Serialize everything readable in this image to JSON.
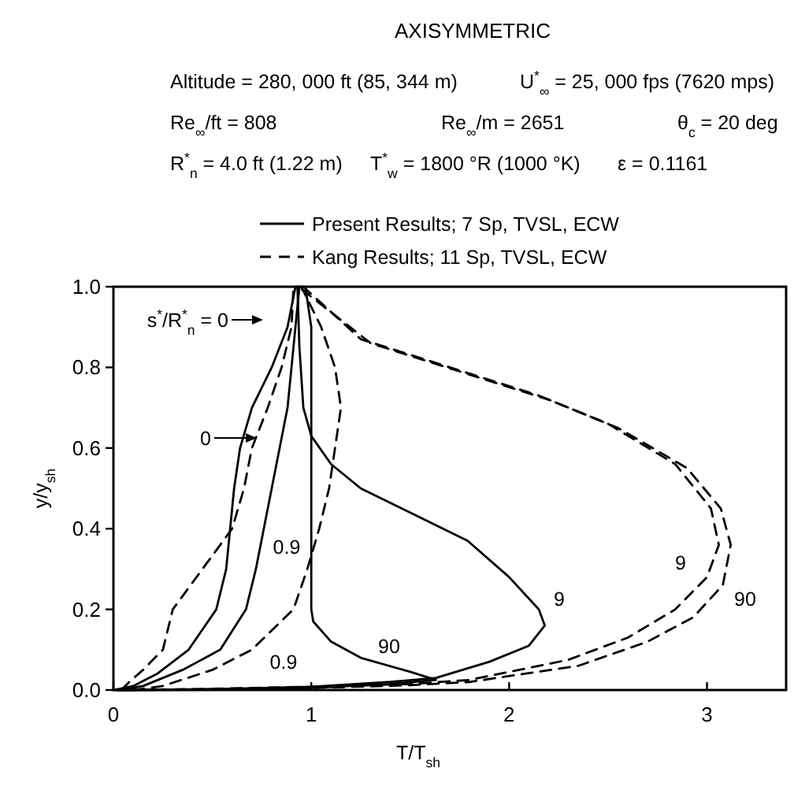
{
  "chart_data": {
    "type": "line",
    "title": "AXISYMMETRIC",
    "xlabel": "T/T$_{sh}$",
    "ylabel": "y/y$_{sh}$",
    "xlim": [
      0,
      3.4
    ],
    "xticks": [
      0,
      1,
      2,
      3
    ],
    "ylim": [
      0,
      1
    ],
    "yticks": [
      {
        "value": 0,
        "label": "0.0"
      },
      {
        "value": 0.2,
        "label": "0.2"
      },
      {
        "value": 0.4,
        "label": "0.4"
      },
      {
        "value": 0.6,
        "label": "0.6"
      },
      {
        "value": 0.8,
        "label": "0.8"
      },
      {
        "value": 1,
        "label": "1.0"
      }
    ],
    "legend": "top",
    "grid": false,
    "marker": "none",
    "series": [
      {
        "name": "Present Results; 7 Sp, TVSL, ECW",
        "color": "#000000",
        "line_style": "solid",
        "x": [
          0,
          0.1,
          0.22,
          0.38,
          0.52,
          0.57,
          0.59,
          0.61,
          0.64,
          0.7,
          0.8,
          0.88,
          0.92
        ],
        "values": [
          0,
          0.01,
          0.04,
          0.1,
          0.2,
          0.3,
          0.4,
          0.5,
          0.6,
          0.7,
          0.8,
          0.9,
          1.0
        ]
      },
      {
        "color": "#000000",
        "line_style": "solid",
        "x": [
          0.03,
          0.15,
          0.35,
          0.54,
          0.67,
          0.72,
          0.76,
          0.8,
          0.84,
          0.88,
          0.9,
          0.92,
          0.94
        ],
        "values": [
          0,
          0.01,
          0.05,
          0.1,
          0.2,
          0.3,
          0.4,
          0.5,
          0.6,
          0.7,
          0.8,
          0.9,
          1.0
        ]
      },
      {
        "color": "#000000",
        "line_style": "solid",
        "x": [
          0.01,
          0.5,
          1.0,
          1.4,
          1.63,
          1.9,
          2.1,
          2.18,
          2.15,
          2.0,
          1.79,
          1.5,
          1.25,
          1.1,
          1.0,
          0.96,
          0.94,
          0.93
        ],
        "values": [
          0,
          0.002,
          0.008,
          0.02,
          0.03,
          0.07,
          0.11,
          0.16,
          0.2,
          0.28,
          0.37,
          0.44,
          0.5,
          0.56,
          0.63,
          0.7,
          0.85,
          1.0
        ]
      },
      {
        "color": "#000000",
        "line_style": "solid",
        "x": [
          0.05,
          0.5,
          1.0,
          1.4,
          1.63,
          1.5,
          1.25,
          1.1,
          1.01,
          1.0,
          1.0,
          1.0,
          0.97
        ],
        "values": [
          0,
          0.001,
          0.005,
          0.015,
          0.025,
          0.045,
          0.08,
          0.12,
          0.17,
          0.2,
          0.5,
          0.9,
          1.0
        ]
      },
      {
        "name": "Kang Results; 11 Sp, TVSL, ECW",
        "color": "#000000",
        "line_style": "dashed",
        "x": [
          0.04,
          0.08,
          0.15,
          0.25,
          0.3,
          0.45,
          0.6,
          0.66,
          0.7,
          0.78,
          0.85,
          0.9,
          0.91
        ],
        "values": [
          0,
          0.02,
          0.05,
          0.1,
          0.2,
          0.3,
          0.4,
          0.5,
          0.6,
          0.7,
          0.8,
          0.9,
          1.0
        ]
      },
      {
        "color": "#000000",
        "line_style": "dashed",
        "x": [
          0.1,
          0.25,
          0.5,
          0.7,
          0.91,
          0.98,
          1.04,
          1.09,
          1.12,
          1.15,
          1.12,
          1.05,
          0.95
        ],
        "values": [
          0,
          0.01,
          0.05,
          0.1,
          0.2,
          0.3,
          0.4,
          0.5,
          0.6,
          0.7,
          0.8,
          0.9,
          1.0
        ]
      },
      {
        "color": "#000000",
        "line_style": "dashed",
        "x": [
          0.02,
          0.5,
          1.0,
          1.5,
          1.8,
          2.3,
          2.6,
          2.84,
          3.0,
          3.06,
          3.02,
          2.84,
          2.5,
          2.15,
          1.7,
          1.25,
          0.96
        ],
        "values": [
          0,
          0.003,
          0.008,
          0.015,
          0.025,
          0.075,
          0.13,
          0.2,
          0.28,
          0.36,
          0.45,
          0.56,
          0.66,
          0.73,
          0.8,
          0.87,
          1.0
        ]
      },
      {
        "color": "#000000",
        "line_style": "dashed",
        "x": [
          0.06,
          0.5,
          1.0,
          1.5,
          1.8,
          2.35,
          2.7,
          2.93,
          3.08,
          3.12,
          3.07,
          2.9,
          2.55,
          2.2,
          1.75,
          1.3,
          0.935
        ],
        "values": [
          0,
          0.002,
          0.005,
          0.012,
          0.02,
          0.06,
          0.12,
          0.18,
          0.26,
          0.36,
          0.45,
          0.55,
          0.65,
          0.72,
          0.79,
          0.86,
          1.0
        ]
      }
    ],
    "annotations": [
      "Altitude = 280, 000 ft (85, 344 m)",
      "U$^{*}$$_{∞}$ = 25, 000 fps (7620 mps)",
      "Re$_{∞}$/ft = 808",
      "Re$_{∞}$/m = 2651",
      "θ$_{c}$ = 20 deg",
      "R$^{*}$$_{n}$ = 4.0 ft (1.22 m)",
      "T$^{*}$$_{w}$ = 1800 °R (1000 °K)",
      "ε = 0.1161",
      "s$^{*}$/R$^{*}$$_{n}$ = 0",
      "0",
      "0.9",
      "0.9",
      "90",
      "9",
      "9",
      "90"
    ]
  }
}
